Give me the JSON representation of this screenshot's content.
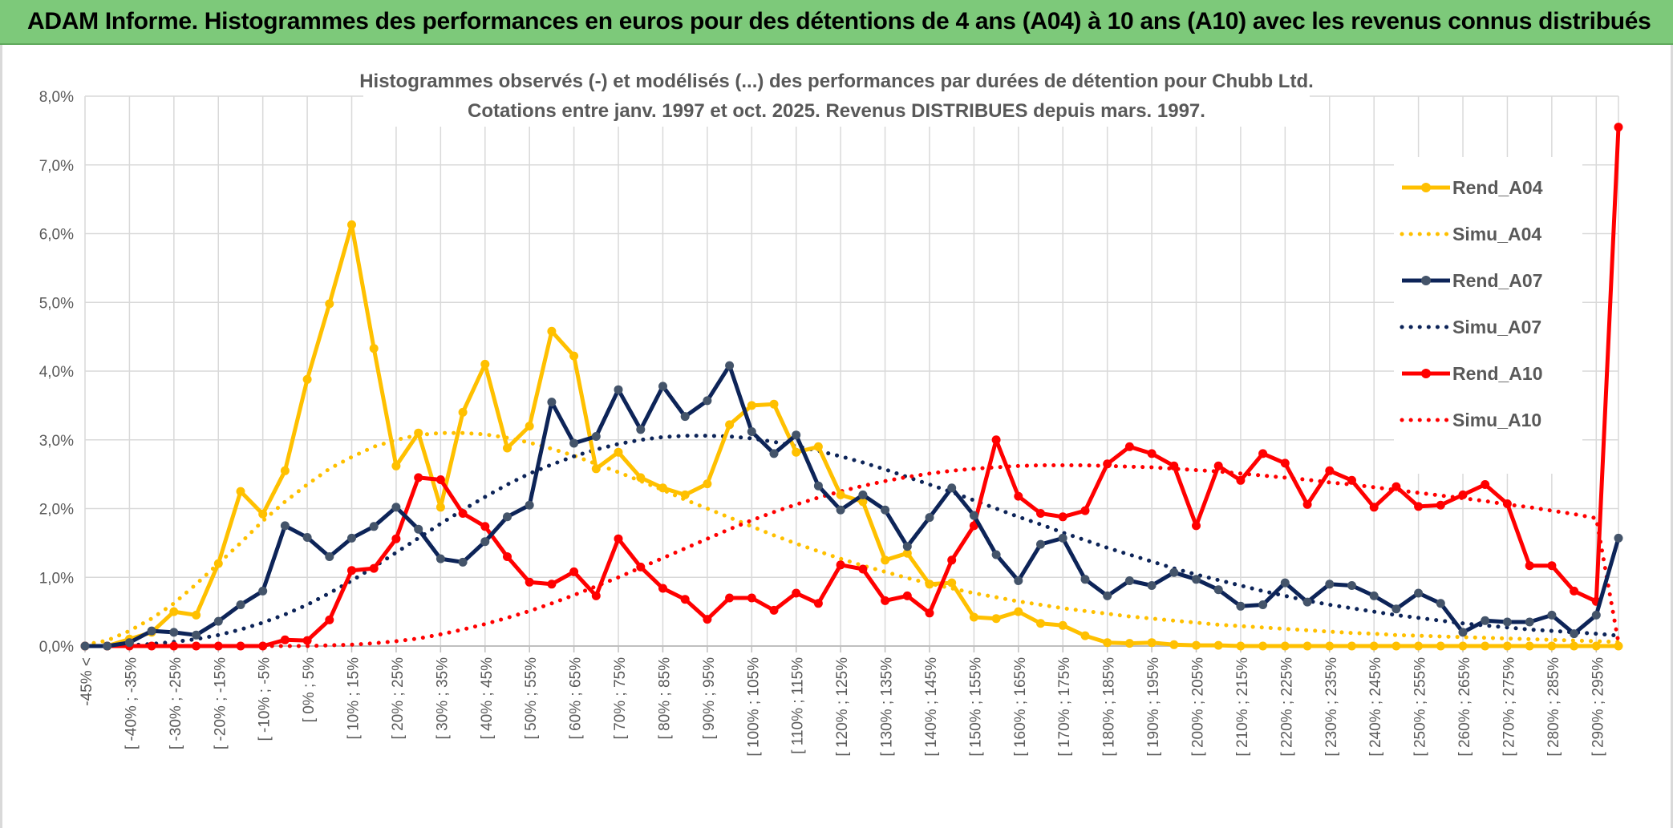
{
  "banner": {
    "title": "ADAM Informe. Histogrammes des performances en euros pour des détentions de 4 ans (A04) à 10 ans (A10) avec les revenus connus distribués"
  },
  "chart_data": {
    "type": "line",
    "title": "Histogrammes observés (-) et modélisés (...) des performances par durées de détention pour Chubb Ltd.",
    "subtitle": "Cotations entre janv. 1997 et oct. 2025. Revenus DISTRIBUES depuis mars. 1997.",
    "xlabel": "",
    "ylabel": "",
    "ylim": [
      0,
      8
    ],
    "yticks": [
      "0,0%",
      "1,0%",
      "2,0%",
      "3,0%",
      "4,0%",
      "5,0%",
      "6,0%",
      "7,0%",
      "8,0%"
    ],
    "grid": true,
    "legend_position": "right",
    "x_labels": [
      "-45% <",
      "[ -40% ; -35%",
      "[ -30% ; -25%",
      "[ -20% ; -15%",
      "[ -10% ; -5%",
      "[ 0% ; 5%",
      "[ 10% ; 15%",
      "[ 20% ; 25%",
      "[ 30% ; 35%",
      "[ 40% ; 45%",
      "[ 50% ; 55%",
      "[ 60% ; 65%",
      "[ 70% ; 75%",
      "[ 80% ; 85%",
      "[ 90% ; 95%",
      "[ 100% ; 105%",
      "[ 110% ; 115%",
      "[ 120% ; 125%",
      "[ 130% ; 135%",
      "[ 140% ; 145%",
      "[ 150% ; 155%",
      "[ 160% ; 165%",
      "[ 170% ; 175%",
      "[ 180% ; 185%",
      "[ 190% ; 195%",
      "[ 200% ; 205%",
      "[ 210% ; 215%",
      "[ 220% ; 225%",
      "[ 230% ; 235%",
      "[ 240% ; 245%",
      "[ 250% ; 255%",
      "[ 260% ; 265%",
      "[ 270% ; 275%",
      "[ 280% ; 285%",
      "[ 290% ; 295%"
    ],
    "num_bins": 70,
    "series": [
      {
        "name": "Rend_A04",
        "style": "solid",
        "color": "#ffc000",
        "values": [
          0,
          0,
          0.1,
          0.2,
          0.5,
          0.45,
          1.2,
          2.25,
          1.92,
          2.55,
          3.88,
          4.98,
          6.13,
          4.33,
          2.62,
          3.1,
          2.02,
          3.4,
          4.1,
          2.88,
          3.2,
          4.58,
          4.22,
          2.58,
          2.82,
          2.45,
          2.3,
          2.2,
          2.36,
          3.22,
          3.5,
          3.52,
          2.82,
          2.9,
          2.2,
          2.1,
          1.25,
          1.35,
          0.9,
          0.92,
          0.42,
          0.4,
          0.5,
          0.33,
          0.3,
          0.15,
          0.05,
          0.04,
          0.05,
          0.02,
          0.01,
          0.01,
          0,
          0,
          0,
          0,
          0,
          0,
          0,
          0,
          0,
          0,
          0,
          0,
          0,
          0,
          0,
          0,
          0,
          0
        ]
      },
      {
        "name": "Simu_A04",
        "style": "dotted",
        "color": "#ffc000",
        "values": [
          0.02,
          0.08,
          0.22,
          0.4,
          0.62,
          0.9,
          1.2,
          1.5,
          1.82,
          2.1,
          2.35,
          2.58,
          2.75,
          2.9,
          3.0,
          3.07,
          3.1,
          3.1,
          3.08,
          3.03,
          2.96,
          2.87,
          2.77,
          2.65,
          2.53,
          2.4,
          2.27,
          2.13,
          2.0,
          1.87,
          1.74,
          1.61,
          1.49,
          1.38,
          1.27,
          1.17,
          1.08,
          0.99,
          0.91,
          0.84,
          0.77,
          0.71,
          0.65,
          0.6,
          0.55,
          0.51,
          0.47,
          0.43,
          0.4,
          0.37,
          0.34,
          0.31,
          0.29,
          0.27,
          0.25,
          0.23,
          0.21,
          0.19,
          0.18,
          0.16,
          0.15,
          0.14,
          0.13,
          0.12,
          0.11,
          0.1,
          0.09,
          0.08,
          0.07,
          0.06
        ]
      },
      {
        "name": "Rend_A07",
        "style": "solid",
        "color": "#0d2458",
        "values": [
          0,
          0,
          0.05,
          0.22,
          0.2,
          0.16,
          0.36,
          0.6,
          0.8,
          1.75,
          1.58,
          1.3,
          1.57,
          1.74,
          2.02,
          1.7,
          1.27,
          1.22,
          1.52,
          1.88,
          2.05,
          3.55,
          2.95,
          3.05,
          3.73,
          3.15,
          3.78,
          3.34,
          3.57,
          4.08,
          3.12,
          2.8,
          3.07,
          2.33,
          1.98,
          2.2,
          1.98,
          1.45,
          1.87,
          2.3,
          1.9,
          1.33,
          0.95,
          1.48,
          1.57,
          0.97,
          0.73,
          0.95,
          0.88,
          1.07,
          0.97,
          0.82,
          0.58,
          0.6,
          0.92,
          0.64,
          0.9,
          0.88,
          0.73,
          0.54,
          0.77,
          0.62,
          0.2,
          0.37,
          0.35,
          0.35,
          0.45,
          0.18,
          0.45,
          1.57
        ]
      },
      {
        "name": "Simu_A07",
        "style": "dotted",
        "color": "#0d2458",
        "values": [
          0,
          0,
          0.01,
          0.03,
          0.06,
          0.1,
          0.16,
          0.24,
          0.34,
          0.46,
          0.6,
          0.77,
          0.95,
          1.15,
          1.36,
          1.57,
          1.78,
          1.98,
          2.17,
          2.35,
          2.51,
          2.64,
          2.76,
          2.86,
          2.94,
          3.0,
          3.04,
          3.06,
          3.06,
          3.05,
          3.02,
          2.97,
          2.91,
          2.84,
          2.76,
          2.67,
          2.57,
          2.46,
          2.35,
          2.24,
          2.12,
          2.0,
          1.88,
          1.77,
          1.65,
          1.54,
          1.43,
          1.33,
          1.23,
          1.13,
          1.04,
          0.96,
          0.88,
          0.8,
          0.73,
          0.66,
          0.6,
          0.55,
          0.5,
          0.45,
          0.41,
          0.37,
          0.33,
          0.3,
          0.27,
          0.24,
          0.22,
          0.2,
          0.18,
          0.15
        ]
      },
      {
        "name": "Rend_A10",
        "style": "solid",
        "color": "#ff0000",
        "values": [
          0,
          0,
          0,
          0,
          0,
          0,
          0,
          0,
          0,
          0.09,
          0.08,
          0.38,
          1.1,
          1.13,
          1.56,
          2.45,
          2.42,
          1.93,
          1.74,
          1.3,
          0.93,
          0.9,
          1.08,
          0.73,
          1.56,
          1.15,
          0.84,
          0.68,
          0.39,
          0.7,
          0.7,
          0.52,
          0.77,
          0.62,
          1.18,
          1.12,
          0.66,
          0.73,
          0.48,
          1.25,
          1.75,
          3.0,
          2.18,
          1.93,
          1.88,
          1.97,
          2.65,
          2.9,
          2.8,
          2.62,
          1.75,
          2.62,
          2.41,
          2.8,
          2.66,
          2.06,
          2.55,
          2.41,
          2.02,
          2.32,
          2.03,
          2.05,
          2.2,
          2.35,
          2.07,
          1.17,
          1.17,
          0.8,
          0.65,
          7.55
        ]
      },
      {
        "name": "Simu_A10",
        "style": "dotted",
        "color": "#ff0000",
        "values": [
          0,
          0,
          0,
          0,
          0,
          0,
          0,
          0,
          0,
          0,
          0,
          0.01,
          0.02,
          0.04,
          0.07,
          0.11,
          0.17,
          0.24,
          0.32,
          0.41,
          0.51,
          0.62,
          0.74,
          0.87,
          1.0,
          1.14,
          1.28,
          1.42,
          1.56,
          1.7,
          1.83,
          1.95,
          2.06,
          2.16,
          2.25,
          2.33,
          2.4,
          2.46,
          2.51,
          2.55,
          2.58,
          2.6,
          2.62,
          2.63,
          2.63,
          2.63,
          2.62,
          2.61,
          2.6,
          2.58,
          2.56,
          2.54,
          2.51,
          2.48,
          2.45,
          2.42,
          2.38,
          2.35,
          2.31,
          2.27,
          2.23,
          2.19,
          2.15,
          2.11,
          2.06,
          2.02,
          1.97,
          1.92,
          1.86,
          0.05
        ]
      }
    ]
  }
}
